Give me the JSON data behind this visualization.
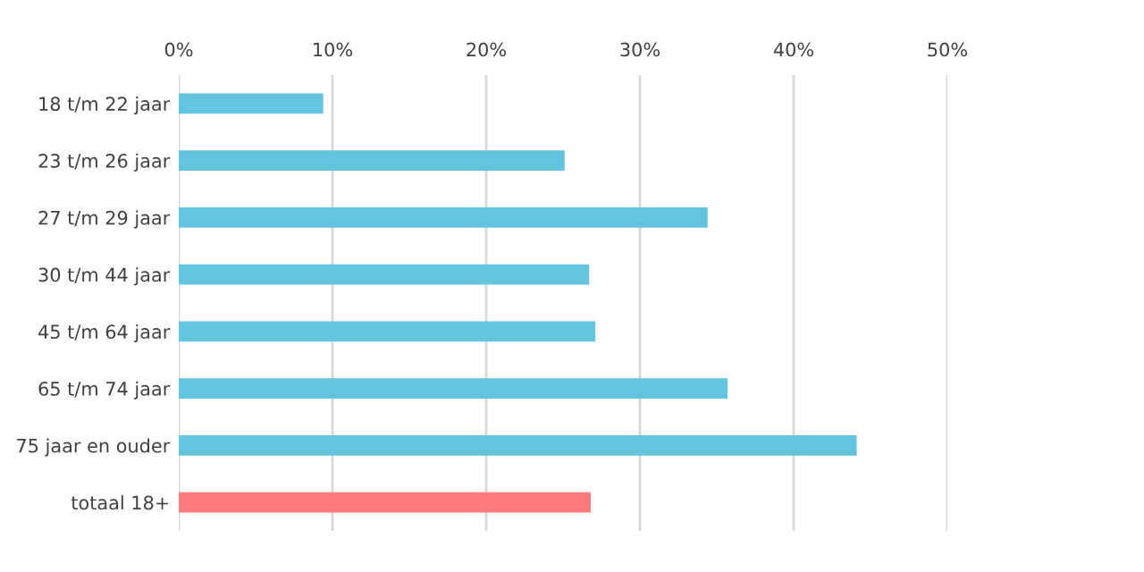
{
  "chart_data": {
    "type": "bar",
    "orientation": "horizontal",
    "categories": [
      "18 t/m 22 jaar",
      "23 t/m 26 jaar",
      "27 t/m 29 jaar",
      "30 t/m 44 jaar",
      "45 t/m 64 jaar",
      "65 t/m 74 jaar",
      "75 jaar en ouder",
      "totaal 18+"
    ],
    "values": [
      9.4,
      25.1,
      34.4,
      26.7,
      27.1,
      35.7,
      44.1,
      26.8
    ],
    "colors": [
      "#62c5dd",
      "#62c5dd",
      "#62c5dd",
      "#62c5dd",
      "#62c5dd",
      "#62c5dd",
      "#62c5dd",
      "#ff7c7c"
    ],
    "xlim": [
      0,
      50
    ],
    "xticks": [
      {
        "value": 0,
        "label": "0%"
      },
      {
        "value": 10,
        "label": "10%"
      },
      {
        "value": 20,
        "label": "20%"
      },
      {
        "value": 30,
        "label": "30%"
      },
      {
        "value": 40,
        "label": "40%"
      },
      {
        "value": 50,
        "label": "50%"
      }
    ],
    "grid": "x"
  }
}
